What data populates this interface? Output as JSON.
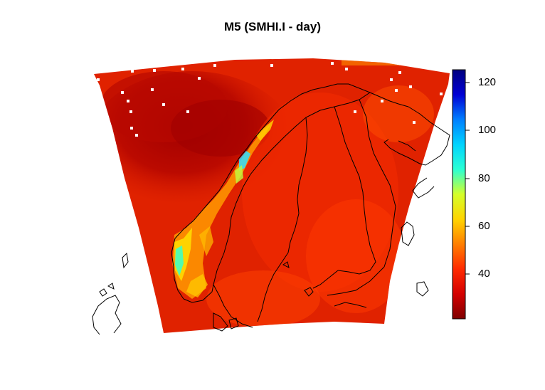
{
  "title": "M5 (SMHI.I - day)",
  "colorbar": {
    "ticks": [
      40,
      60,
      80,
      100,
      120
    ],
    "min": 22,
    "max": 125,
    "colors": [
      "#7f0000",
      "#d40000",
      "#ff2a00",
      "#ff7f00",
      "#ffd400",
      "#d4ff2a",
      "#2affd4",
      "#00d4ff",
      "#007fff",
      "#0000d4",
      "#00007f"
    ]
  },
  "map": {
    "type": "gridded-field",
    "region": "Scandinavia / Fennoscandia",
    "coastlines": true
  }
}
